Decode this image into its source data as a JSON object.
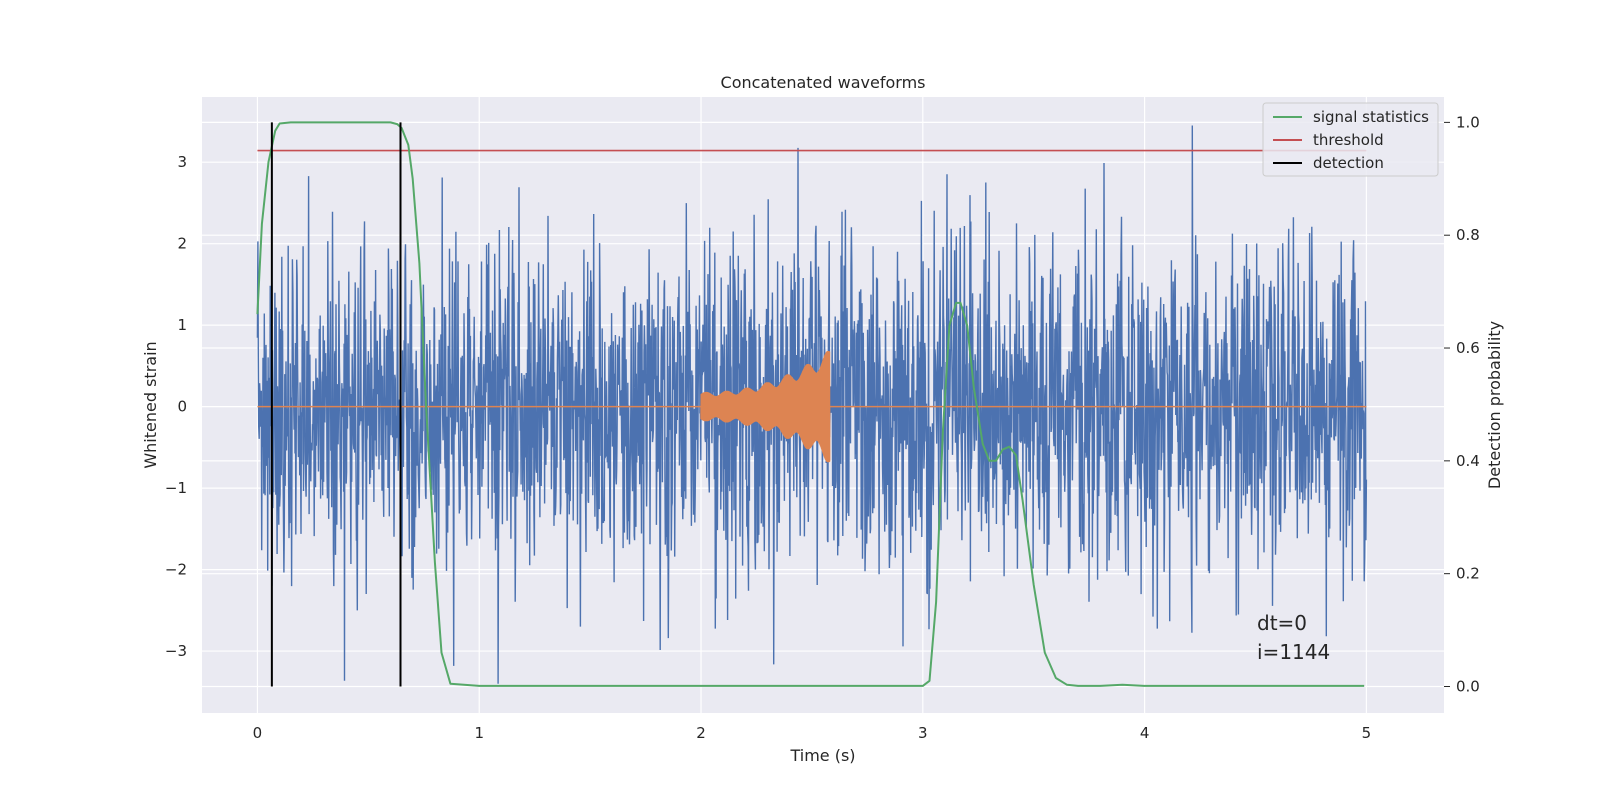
{
  "chart_data": {
    "type": "line",
    "title": "Concatenated waveforms",
    "xlabel": "Time (s)",
    "ylabel": "Whitened strain",
    "ylabel_right": "Detection probability",
    "xlim": [
      -0.25,
      5.35
    ],
    "ylim": [
      -3.76,
      3.8
    ],
    "ylim_right": [
      -0.047,
      1.045
    ],
    "x_ticks": [
      0,
      1,
      2,
      3,
      4,
      5
    ],
    "y_ticks": [
      -3,
      -2,
      -1,
      0,
      1,
      2,
      3
    ],
    "y_ticks_right": [
      0.0,
      0.2,
      0.4,
      0.6,
      0.8,
      1.0
    ],
    "x_tick_labels": [
      "0",
      "1",
      "2",
      "3",
      "4",
      "5"
    ],
    "y_tick_labels": [
      "−3",
      "−2",
      "−1",
      "0",
      "1",
      "2",
      "3"
    ],
    "y_tick_labels_right": [
      "0.0",
      "0.2",
      "0.4",
      "0.6",
      "0.8",
      "1.0"
    ],
    "grid": true,
    "legend_position": "top-right",
    "colors": {
      "strain": "#4c72b0",
      "injection": "#dd8452",
      "signal_statistics": "#55a868",
      "threshold": "#c44e52",
      "detection": "#000000",
      "axes_background": "#eaeaf2",
      "grid": "#ffffff"
    },
    "series": [
      {
        "name": "signal statistics",
        "axis": "right",
        "x": [
          0.0,
          0.02,
          0.05,
          0.08,
          0.1,
          0.15,
          0.3,
          0.5,
          0.6,
          0.63,
          0.65,
          0.68,
          0.7,
          0.73,
          0.76,
          0.8,
          0.83,
          0.87,
          1.0,
          2.0,
          2.9,
          3.0,
          3.03,
          3.06,
          3.09,
          3.12,
          3.15,
          3.17,
          3.2,
          3.23,
          3.27,
          3.3,
          3.33,
          3.36,
          3.39,
          3.42,
          3.45,
          3.5,
          3.55,
          3.6,
          3.65,
          3.7,
          3.8,
          3.9,
          4.0,
          4.5,
          4.99
        ],
        "values": [
          0.66,
          0.82,
          0.93,
          0.985,
          0.998,
          1.0,
          1.0,
          1.0,
          1.0,
          0.997,
          0.99,
          0.96,
          0.9,
          0.75,
          0.5,
          0.22,
          0.06,
          0.005,
          0.001,
          0.001,
          0.001,
          0.001,
          0.01,
          0.15,
          0.45,
          0.64,
          0.68,
          0.68,
          0.64,
          0.53,
          0.43,
          0.4,
          0.4,
          0.42,
          0.425,
          0.41,
          0.33,
          0.18,
          0.06,
          0.015,
          0.003,
          0.001,
          0.001,
          0.003,
          0.001,
          0.001,
          0.001
        ]
      },
      {
        "name": "threshold",
        "axis": "right",
        "x": [
          0.0,
          5.0
        ],
        "values": [
          0.95,
          0.95
        ]
      },
      {
        "name": "detection",
        "axis": "right",
        "type": "vline",
        "x": [
          0.065,
          0.645
        ],
        "ymin": 0.0,
        "ymax": 1.0
      },
      {
        "name": "",
        "axis": "left",
        "role": "whitened strain noise",
        "x_range": [
          0.0,
          5.0
        ],
        "samples": 2600,
        "approx_std": 1.0,
        "approx_min": -3.4,
        "approx_max": 3.45
      },
      {
        "name": "",
        "axis": "left",
        "role": "injected chirp",
        "x_range": [
          2.0,
          2.58
        ],
        "amplitude_start": 0.18,
        "amplitude_end": 0.7
      }
    ],
    "legend": [
      "signal statistics",
      "threshold",
      "detection"
    ],
    "annotations": [
      "dt=0",
      "i=1144"
    ]
  }
}
